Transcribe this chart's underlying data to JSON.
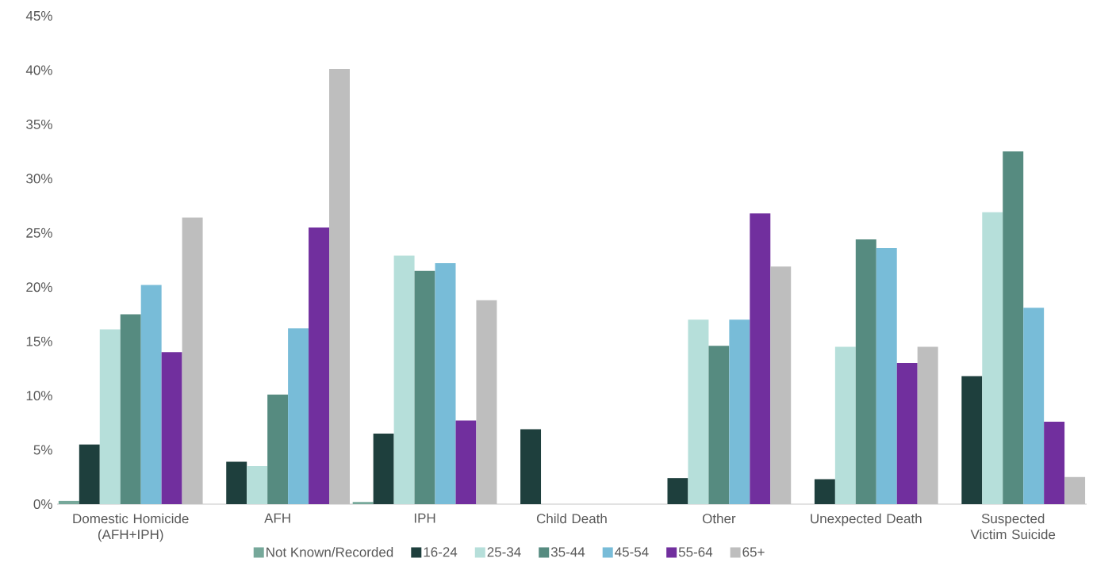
{
  "chart_data": {
    "type": "bar",
    "categories": [
      "Domestic Homicide (AFH+IPH)",
      "AFH",
      "IPH",
      "Child Death",
      "Other",
      "Unexpected Death",
      "Suspected Victim Suicide"
    ],
    "series": [
      {
        "name": "Not Known/Recorded",
        "color": "#76a89a",
        "values": [
          0.3,
          0,
          0.2,
          0,
          0,
          0,
          0
        ]
      },
      {
        "name": "16-24",
        "color": "#1e3f3d",
        "values": [
          5.5,
          3.9,
          6.5,
          6.9,
          2.4,
          2.3,
          11.8
        ]
      },
      {
        "name": "25-34",
        "color": "#b6dfda",
        "values": [
          16.1,
          3.5,
          22.9,
          0,
          17.0,
          14.5,
          26.9
        ]
      },
      {
        "name": "35-44",
        "color": "#568b80",
        "values": [
          17.5,
          10.1,
          21.5,
          0,
          14.6,
          24.4,
          32.5
        ]
      },
      {
        "name": "45-54",
        "color": "#78bcd8",
        "values": [
          20.2,
          16.2,
          22.2,
          0,
          17.0,
          23.6,
          18.1
        ]
      },
      {
        "name": "55-64",
        "color": "#712f9e",
        "values": [
          14.0,
          25.5,
          7.7,
          0,
          26.8,
          13.0,
          7.6
        ]
      },
      {
        "name": "65+",
        "color": "#bebebe",
        "values": [
          26.4,
          40.1,
          18.8,
          0,
          21.9,
          14.5,
          2.5
        ]
      }
    ],
    "ylim": [
      0,
      45
    ],
    "yticks": [
      {
        "value": 0,
        "label": "0%"
      },
      {
        "value": 5,
        "label": "5%"
      },
      {
        "value": 10,
        "label": "10%"
      },
      {
        "value": 15,
        "label": "15%"
      },
      {
        "value": 20,
        "label": "20%"
      },
      {
        "value": 25,
        "label": "25%"
      },
      {
        "value": 30,
        "label": "30%"
      },
      {
        "value": 35,
        "label": "35%"
      },
      {
        "value": 40,
        "label": "40%"
      },
      {
        "value": 45,
        "label": "45%"
      }
    ],
    "legend": "bottom"
  }
}
